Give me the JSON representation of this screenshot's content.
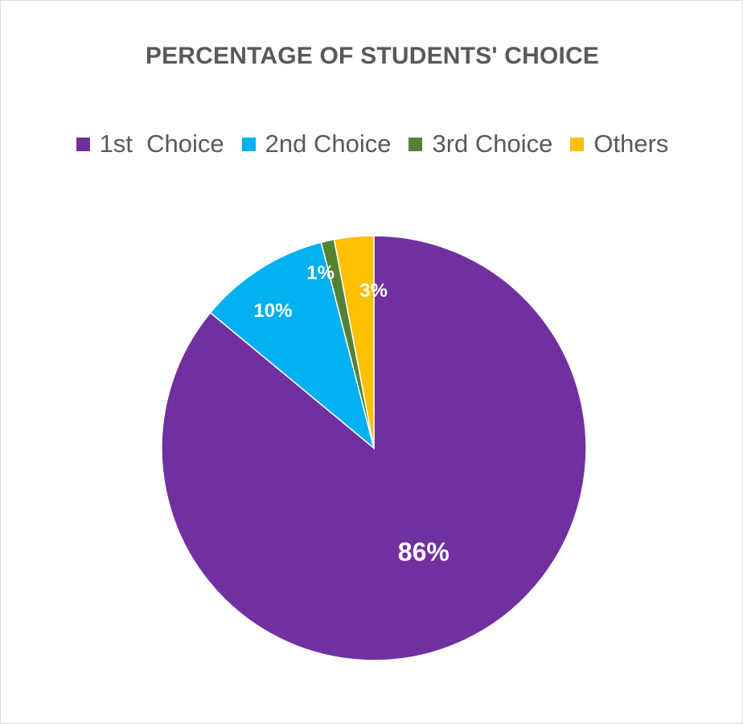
{
  "chart_data": {
    "type": "pie",
    "title": "PERCENTAGE OF STUDENTS' CHOICE",
    "legend_position": "top",
    "categories": [
      "1st  Choice",
      "2nd Choice",
      "3rd Choice",
      "Others"
    ],
    "values": [
      86,
      10,
      1,
      3
    ],
    "labels": [
      "86%",
      "10%",
      "1%",
      "3%"
    ],
    "colors": [
      "#7030A0",
      "#00B0F0",
      "#548235",
      "#FFC000"
    ]
  }
}
